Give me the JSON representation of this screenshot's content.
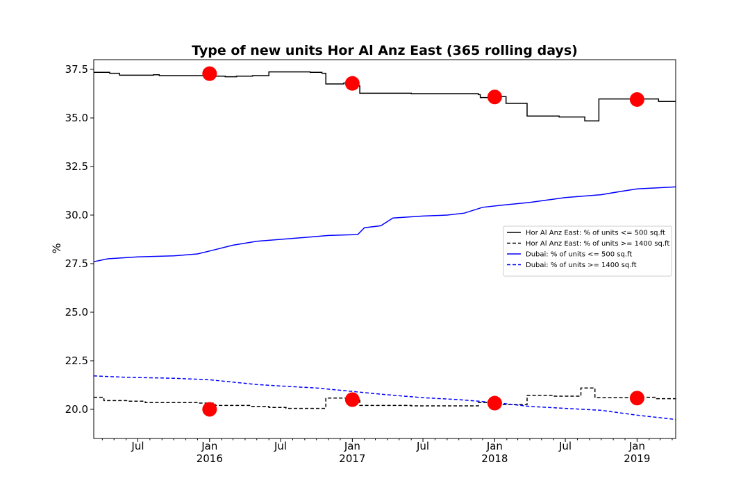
{
  "chart_data": {
    "type": "line",
    "title": "Type of new units Hor Al Anz East (365 rolling days)",
    "xlabel": "",
    "ylabel": "%",
    "xlim": [
      "2015-03-10",
      "2019-04-10"
    ],
    "ylim": [
      18.5,
      38.0
    ],
    "grid": false,
    "legend_position": "center-right",
    "y_ticks": [
      20.0,
      22.5,
      25.0,
      27.5,
      30.0,
      32.5,
      35.0,
      37.5
    ],
    "y_tick_labels": [
      "20.0",
      "22.5",
      "25.0",
      "27.5",
      "30.0",
      "32.5",
      "35.0",
      "37.5"
    ],
    "x_major_ticks": [
      {
        "date": "2015-07-01",
        "label": "Jul"
      },
      {
        "date": "2016-01-01",
        "label": "Jan",
        "year_label": "2016"
      },
      {
        "date": "2016-07-01",
        "label": "Jul"
      },
      {
        "date": "2017-01-01",
        "label": "Jan",
        "year_label": "2017"
      },
      {
        "date": "2017-07-01",
        "label": "Jul"
      },
      {
        "date": "2018-01-01",
        "label": "Jan",
        "year_label": "2018"
      },
      {
        "date": "2018-07-01",
        "label": "Jul"
      },
      {
        "date": "2019-01-01",
        "label": "Jan",
        "year_label": "2019"
      }
    ],
    "series": [
      {
        "name": "Hor Al Anz East: % of units <= 500 sq.ft",
        "color": "#000000",
        "dash": "solid",
        "step": true,
        "points": [
          [
            "2015-03-10",
            37.35
          ],
          [
            "2015-04-20",
            37.3
          ],
          [
            "2015-05-15",
            37.2
          ],
          [
            "2015-08-10",
            37.22
          ],
          [
            "2015-08-25",
            37.18
          ],
          [
            "2015-12-20",
            37.15
          ],
          [
            "2016-02-10",
            37.12
          ],
          [
            "2016-03-10",
            37.15
          ],
          [
            "2016-04-20",
            37.18
          ],
          [
            "2016-06-01",
            37.37
          ],
          [
            "2016-09-15",
            37.35
          ],
          [
            "2016-10-15",
            37.3
          ],
          [
            "2016-10-25",
            36.75
          ],
          [
            "2016-12-10",
            36.8
          ],
          [
            "2017-01-10",
            36.65
          ],
          [
            "2017-01-20",
            36.27
          ],
          [
            "2017-06-01",
            36.25
          ],
          [
            "2017-11-20",
            36.2
          ],
          [
            "2017-11-25",
            36.05
          ],
          [
            "2018-01-10",
            36.1
          ],
          [
            "2018-01-30",
            35.75
          ],
          [
            "2018-03-25",
            35.1
          ],
          [
            "2018-06-15",
            35.05
          ],
          [
            "2018-08-20",
            34.85
          ],
          [
            "2018-09-25",
            35.98
          ],
          [
            "2019-02-25",
            35.85
          ],
          [
            "2019-04-10",
            35.85
          ]
        ]
      },
      {
        "name": "Hor Al Anz East: % of units >= 1400 sq.ft",
        "color": "#000000",
        "dash": "dashed",
        "step": true,
        "points": [
          [
            "2015-03-10",
            20.62
          ],
          [
            "2015-04-05",
            20.45
          ],
          [
            "2015-06-05",
            20.42
          ],
          [
            "2015-07-20",
            20.35
          ],
          [
            "2015-12-01",
            20.32
          ],
          [
            "2016-01-15",
            20.2
          ],
          [
            "2016-04-15",
            20.15
          ],
          [
            "2016-06-01",
            20.1
          ],
          [
            "2016-07-15",
            20.05
          ],
          [
            "2016-10-25",
            20.58
          ],
          [
            "2016-12-15",
            20.55
          ],
          [
            "2017-01-20",
            20.2
          ],
          [
            "2017-06-01",
            20.18
          ],
          [
            "2017-11-20",
            20.35
          ],
          [
            "2017-12-15",
            20.38
          ],
          [
            "2018-01-01",
            20.25
          ],
          [
            "2018-03-25",
            20.72
          ],
          [
            "2018-06-01",
            20.68
          ],
          [
            "2018-08-10",
            21.1
          ],
          [
            "2018-09-15",
            20.6
          ],
          [
            "2019-01-01",
            20.62
          ],
          [
            "2019-02-20",
            20.55
          ],
          [
            "2019-04-10",
            20.55
          ]
        ]
      },
      {
        "name": "Dubai: % of units <= 500 sq.ft",
        "color": "#0000ff",
        "dash": "solid",
        "step": false,
        "points": [
          [
            "2015-03-10",
            27.6
          ],
          [
            "2015-04-15",
            27.75
          ],
          [
            "2015-07-01",
            27.85
          ],
          [
            "2015-10-01",
            27.9
          ],
          [
            "2015-12-01",
            28.0
          ],
          [
            "2016-01-01",
            28.15
          ],
          [
            "2016-03-01",
            28.45
          ],
          [
            "2016-05-01",
            28.65
          ],
          [
            "2016-07-01",
            28.75
          ],
          [
            "2016-09-01",
            28.85
          ],
          [
            "2016-11-01",
            28.95
          ],
          [
            "2017-01-15",
            29.0
          ],
          [
            "2017-02-01",
            29.35
          ],
          [
            "2017-03-15",
            29.45
          ],
          [
            "2017-04-15",
            29.85
          ],
          [
            "2017-07-01",
            29.95
          ],
          [
            "2017-09-01",
            30.0
          ],
          [
            "2017-10-15",
            30.1
          ],
          [
            "2017-12-01",
            30.4
          ],
          [
            "2018-01-15",
            30.5
          ],
          [
            "2018-04-01",
            30.65
          ],
          [
            "2018-07-01",
            30.9
          ],
          [
            "2018-10-01",
            31.05
          ],
          [
            "2018-11-15",
            31.2
          ],
          [
            "2019-01-01",
            31.35
          ],
          [
            "2019-04-10",
            31.45
          ]
        ]
      },
      {
        "name": "Dubai: % of units >= 1400 sq.ft",
        "color": "#0000ff",
        "dash": "dashed",
        "step": false,
        "points": [
          [
            "2015-03-10",
            21.72
          ],
          [
            "2015-06-01",
            21.65
          ],
          [
            "2015-10-01",
            21.6
          ],
          [
            "2016-01-01",
            21.52
          ],
          [
            "2016-03-01",
            21.4
          ],
          [
            "2016-05-01",
            21.28
          ],
          [
            "2016-07-01",
            21.2
          ],
          [
            "2016-10-01",
            21.1
          ],
          [
            "2017-01-01",
            20.92
          ],
          [
            "2017-04-01",
            20.75
          ],
          [
            "2017-07-01",
            20.6
          ],
          [
            "2017-10-01",
            20.5
          ],
          [
            "2018-01-01",
            20.35
          ],
          [
            "2018-04-01",
            20.15
          ],
          [
            "2018-07-01",
            20.05
          ],
          [
            "2018-10-01",
            19.95
          ],
          [
            "2019-01-01",
            19.7
          ],
          [
            "2019-04-10",
            19.48
          ]
        ]
      }
    ],
    "markers": {
      "color": "#ff0000",
      "points": [
        [
          "2016-01-01",
          37.28
        ],
        [
          "2017-01-01",
          36.78
        ],
        [
          "2018-01-01",
          36.08
        ],
        [
          "2019-01-01",
          35.95
        ],
        [
          "2016-01-01",
          20.0
        ],
        [
          "2017-01-01",
          20.5
        ],
        [
          "2018-01-01",
          20.32
        ],
        [
          "2019-01-01",
          20.58
        ]
      ]
    }
  }
}
